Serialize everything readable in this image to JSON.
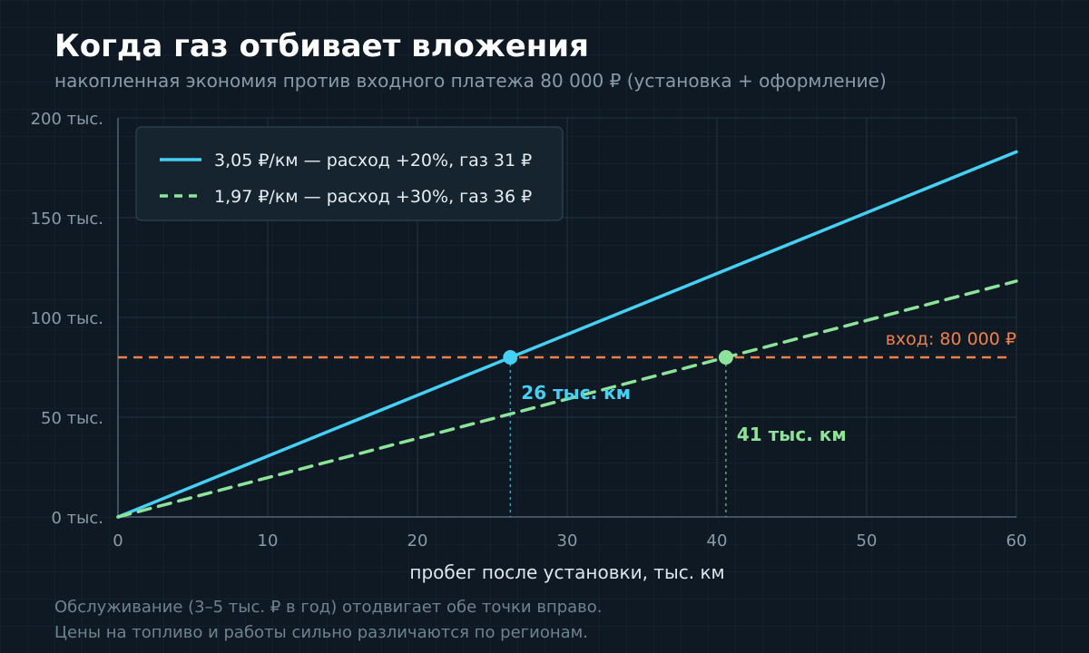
{
  "chart_data": {
    "type": "line",
    "title": "Когда газ отбивает вложения",
    "subtitle": "накопленная экономия против входного платежа 80 000 ₽ (установка + оформление)",
    "xlabel": "пробег после установки, тыс. км",
    "ylabel": "",
    "xlim": [
      0,
      60
    ],
    "ylim": [
      0,
      200000
    ],
    "x_ticks": [
      {
        "value": 0,
        "label": "0"
      },
      {
        "value": 10,
        "label": "10"
      },
      {
        "value": 20,
        "label": "20"
      },
      {
        "value": 30,
        "label": "30"
      },
      {
        "value": 40,
        "label": "40"
      },
      {
        "value": 50,
        "label": "50"
      },
      {
        "value": 60,
        "label": "60"
      }
    ],
    "y_ticks": [
      {
        "value": 0,
        "label": "0 тыс."
      },
      {
        "value": 50000,
        "label": "50 тыс."
      },
      {
        "value": 100000,
        "label": "100 тыс."
      },
      {
        "value": 150000,
        "label": "150 тыс."
      },
      {
        "value": 200000,
        "label": "200 тыс."
      }
    ],
    "grid": true,
    "legend_position": "top-left",
    "series": [
      {
        "name": "3,05 ₽/км — расход +20%, газ 31 ₽",
        "x": [
          0,
          60
        ],
        "y": [
          0,
          183000
        ],
        "color": "#45d0f5",
        "dash": "solid"
      },
      {
        "name": "1,97 ₽/км — расход +30%, газ 36 ₽",
        "x": [
          0,
          60
        ],
        "y": [
          0,
          118200
        ],
        "color": "#8ee39a",
        "dash": "dashed"
      }
    ],
    "threshold": {
      "value": 80000,
      "label": "вход: 80 000 ₽",
      "color": "#f0804a"
    },
    "breakeven_points": [
      {
        "x": 26.2,
        "y": 80000,
        "label": "26 тыс. км",
        "color": "#45d0f5",
        "series": 0
      },
      {
        "x": 40.6,
        "y": 80000,
        "label": "41 тыс. км",
        "color": "#8ee39a",
        "series": 1
      }
    ]
  },
  "footnotes": [
    "Обслуживание (3–5 тыс. ₽ в год) отодвигает обе точки вправо.",
    "Цены на топливо и работы сильно различаются по регионам."
  ]
}
